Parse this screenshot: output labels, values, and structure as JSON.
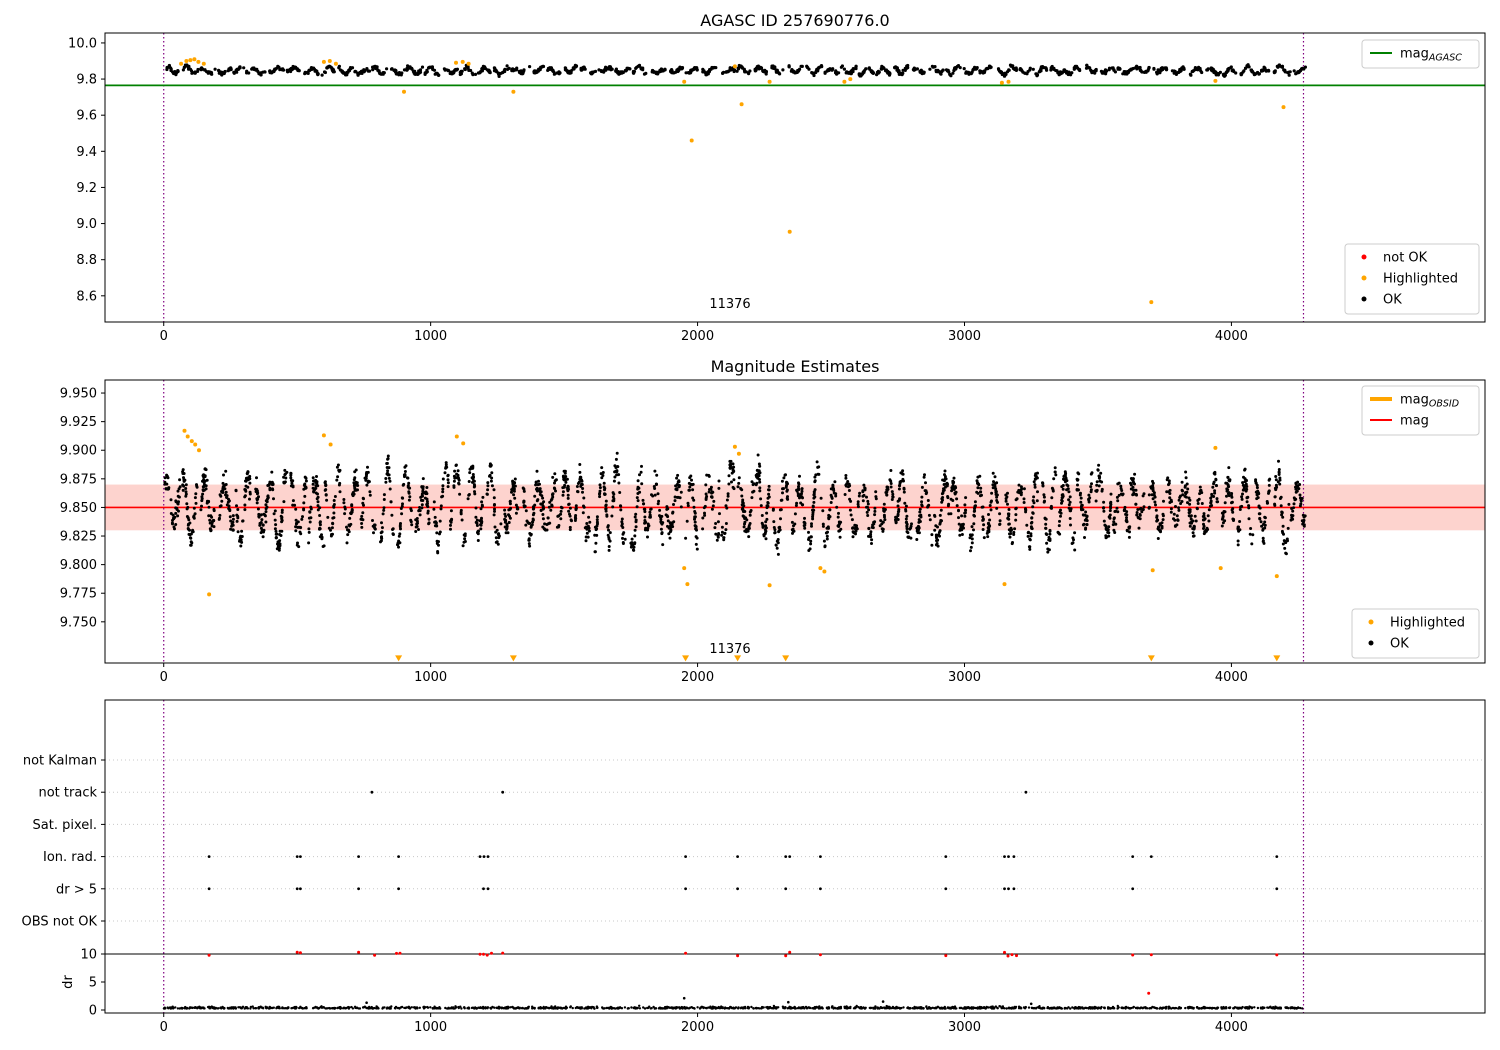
{
  "figure": {
    "colors": {
      "ok": "#000000",
      "highlighted": "#ffa500",
      "not_ok": "#ff0000",
      "agasc_line": "#008000",
      "mag_line": "#ff0000",
      "obsid_line": "#ffa500",
      "band": "rgba(250,128,114,0.35)",
      "vline": "#800080",
      "grid": "#c8c8c8"
    }
  },
  "chart_data": [
    {
      "type": "scatter",
      "title": "AGASC ID 257690776.0",
      "xlim": [
        -220,
        4950
      ],
      "ylim": [
        8.455,
        10.055
      ],
      "xticks": [
        0,
        1000,
        2000,
        3000,
        4000
      ],
      "yticks": [
        10.0,
        9.8,
        9.6,
        9.4,
        9.2,
        9.0,
        8.8,
        8.6
      ],
      "ytick_decimals": 1,
      "hline_mag_agasc": 9.765,
      "vlines": [
        0,
        4270
      ],
      "annotation": {
        "text": "11376",
        "x": 2120,
        "y": 8.53
      },
      "legend_line": [
        {
          "label": "mag",
          "sub": "AGASC",
          "color": "#008000",
          "type": "line",
          "lw": 2
        }
      ],
      "legend_markers": [
        {
          "label": "not OK",
          "color": "#ff0000"
        },
        {
          "label": "Highlighted",
          "color": "#ffa500"
        },
        {
          "label": "OK",
          "color": "#000000"
        }
      ],
      "cloud": {
        "seed": 42,
        "segments": 66,
        "mean": 9.852,
        "n_per_segment": 22,
        "y_range": [
          9.815,
          9.915
        ],
        "x_max": 4280
      },
      "highlighted_points": [
        [
          65,
          9.885
        ],
        [
          85,
          9.9
        ],
        [
          100,
          9.905
        ],
        [
          115,
          9.91
        ],
        [
          130,
          9.895
        ],
        [
          150,
          9.885
        ],
        [
          600,
          9.895
        ],
        [
          622,
          9.9
        ],
        [
          645,
          9.885
        ],
        [
          900,
          9.73
        ],
        [
          1095,
          9.89
        ],
        [
          1120,
          9.895
        ],
        [
          1142,
          9.885
        ],
        [
          1310,
          9.73
        ],
        [
          1950,
          9.785
        ],
        [
          1978,
          9.46
        ],
        [
          2140,
          9.87
        ],
        [
          2165,
          9.66
        ],
        [
          2270,
          9.785
        ],
        [
          2345,
          8.955
        ],
        [
          2550,
          9.785
        ],
        [
          2572,
          9.8
        ],
        [
          3140,
          9.78
        ],
        [
          3165,
          9.785
        ],
        [
          3700,
          8.565
        ],
        [
          3940,
          9.79
        ],
        [
          4195,
          9.645
        ]
      ]
    },
    {
      "type": "scatter",
      "title": "Magnitude Estimates",
      "xlim": [
        -220,
        4950
      ],
      "ylim": [
        9.714,
        9.9614
      ],
      "xticks": [
        0,
        1000,
        2000,
        3000,
        4000
      ],
      "yticks": [
        9.95,
        9.925,
        9.9,
        9.875,
        9.85,
        9.825,
        9.8,
        9.775,
        9.75
      ],
      "ytick_decimals": 3,
      "hline_mag": 9.85,
      "band": [
        9.83,
        9.87
      ],
      "vlines": [
        0,
        4270
      ],
      "annotation": {
        "text": "11376",
        "x": 2120,
        "y": 9.722
      },
      "legend_line": [
        {
          "label": "mag",
          "sub": "OBSID",
          "color": "#ffa500",
          "type": "line",
          "lw": 4
        },
        {
          "label": "mag",
          "sub": "",
          "color": "#ff0000",
          "type": "line",
          "lw": 2
        }
      ],
      "legend_markers": [
        {
          "label": "Highlighted",
          "color": "#ffa500"
        },
        {
          "label": "OK",
          "color": "#000000"
        }
      ],
      "cloud": {
        "seed": 7,
        "segments": 64,
        "mean": 9.851,
        "n_per_segment": 46,
        "y_range": [
          9.795,
          9.912
        ],
        "x_max": 4280
      },
      "highlighted_points": [
        [
          78,
          9.917
        ],
        [
          90,
          9.912
        ],
        [
          105,
          9.908
        ],
        [
          118,
          9.905
        ],
        [
          132,
          9.9
        ],
        [
          170,
          9.774
        ],
        [
          600,
          9.913
        ],
        [
          625,
          9.905
        ],
        [
          1098,
          9.912
        ],
        [
          1122,
          9.906
        ],
        [
          1950,
          9.797
        ],
        [
          1962,
          9.783
        ],
        [
          2140,
          9.903
        ],
        [
          2155,
          9.897
        ],
        [
          2270,
          9.782
        ],
        [
          2460,
          9.797
        ],
        [
          2475,
          9.794
        ],
        [
          3150,
          9.783
        ],
        [
          3705,
          9.795
        ],
        [
          3940,
          9.902
        ],
        [
          3960,
          9.797
        ],
        [
          4170,
          9.79
        ]
      ],
      "clipped_low_x": [
        880,
        1310,
        1955,
        2150,
        2330,
        3700,
        4170
      ],
      "clipped_low_y": 9.718
    },
    {
      "type": "scatter",
      "title": "",
      "xlim": [
        -220,
        4950
      ],
      "xticks": [
        0,
        1000,
        2000,
        3000,
        4000
      ],
      "categories": [
        "not Kalman",
        "not track",
        "Sat. pixel.",
        "Ion. rad.",
        "dr > 5",
        "OBS not OK"
      ],
      "dr_ticks": [
        10,
        5,
        0
      ],
      "ylabel": "dr",
      "dr_threshold": 10,
      "vlines": [
        0,
        4270
      ],
      "flags": {
        "not Kalman": [],
        "not track": [
          780,
          1270,
          3230
        ],
        "Sat. pixel.": [],
        "Ion. rad.": [
          170,
          500,
          512,
          730,
          880,
          1185,
          1200,
          1215,
          1955,
          2150,
          2330,
          2345,
          2460,
          2930,
          3150,
          3165,
          3185,
          3630,
          3700,
          4170
        ],
        "dr > 5": [
          170,
          500,
          512,
          730,
          880,
          1198,
          1215,
          1955,
          2150,
          2330,
          2460,
          2930,
          3150,
          3165,
          3185,
          3630,
          4170
        ],
        "OBS not OK": []
      },
      "red_clipped_dr_x": [
        170,
        500,
        512,
        730,
        790,
        872,
        885,
        1185,
        1198,
        1212,
        1228,
        1270,
        1955,
        2150,
        2330,
        2345,
        2460,
        2930,
        3150,
        3163,
        3178,
        3195,
        3630,
        3700,
        4170
      ],
      "red_points": [
        [
          3690,
          3.0
        ]
      ],
      "dr_spikes": [
        [
          760,
          1.3
        ],
        [
          1950,
          2.1
        ],
        [
          2340,
          1.4
        ],
        [
          2695,
          1.5
        ],
        [
          3250,
          1.1
        ]
      ],
      "cloud": {
        "seed": 99,
        "n": 1400,
        "mean_dr": 0.45,
        "x_max": 4270
      }
    }
  ]
}
